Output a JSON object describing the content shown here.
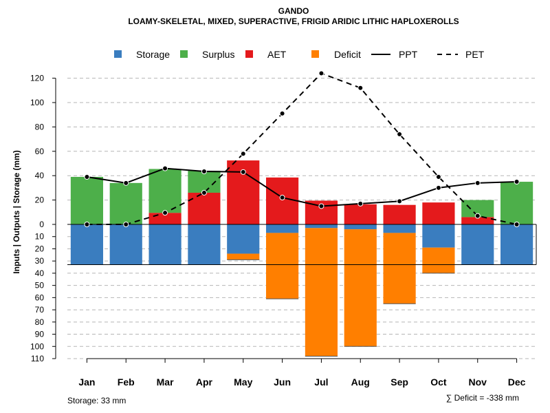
{
  "chart_data": {
    "type": "bar",
    "title": "GANDO",
    "subtitle": "LOAMY-SKELETAL, MIXED, SUPERACTIVE, FRIGID ARIDIC LITHIC HAPLOXEROLLS",
    "ylabel": "Inputs | Outputs | Storage    (mm)",
    "categories": [
      "Jan",
      "Feb",
      "Mar",
      "Apr",
      "May",
      "Jun",
      "Jul",
      "Aug",
      "Sep",
      "Oct",
      "Nov",
      "Dec"
    ],
    "upper_ticks": [
      "0",
      "20",
      "40",
      "60",
      "80",
      "100",
      "120"
    ],
    "lower_ticks": [
      "10",
      "20",
      "30",
      "40",
      "50",
      "60",
      "70",
      "80",
      "90",
      "100",
      "110"
    ],
    "upper_tick_values": [
      0,
      20,
      40,
      60,
      80,
      100,
      120
    ],
    "lower_tick_values": [
      10,
      20,
      30,
      40,
      50,
      60,
      70,
      80,
      90,
      100,
      110
    ],
    "ylim_upper": [
      0,
      120
    ],
    "ylim_lower": [
      0,
      110
    ],
    "legend": {
      "position": "top",
      "storage": "Storage",
      "surplus": "Surplus",
      "aet": "AET",
      "deficit": "Deficit",
      "ppt": "PPT",
      "pet": "PET"
    },
    "colors": {
      "storage": "#3a7dbf",
      "surplus": "#4daf4a",
      "aet": "#e41a1c",
      "deficit": "#ff7f00"
    },
    "series": [
      {
        "name": "Surplus",
        "values": [
          39,
          34,
          36,
          18,
          0,
          0,
          0,
          0,
          0,
          0,
          14,
          35
        ]
      },
      {
        "name": "AET",
        "values": [
          0,
          0,
          9.5,
          26,
          52.5,
          38.5,
          19.5,
          16.5,
          16,
          18,
          6,
          0
        ]
      },
      {
        "name": "Storage",
        "values": [
          33,
          33,
          33,
          33,
          24,
          7,
          3,
          4,
          7,
          19,
          33,
          33
        ]
      },
      {
        "name": "Deficit",
        "values": [
          0,
          0,
          0,
          0,
          5,
          54,
          105,
          96,
          58,
          21,
          0,
          0
        ]
      },
      {
        "name": "PPT",
        "values": [
          39,
          34,
          46,
          43.5,
          43,
          22,
          15,
          17,
          19,
          30,
          34,
          35
        ]
      },
      {
        "name": "PET",
        "values": [
          0,
          0,
          9.5,
          26,
          58,
          91,
          124,
          112,
          74,
          39,
          7,
          0
        ]
      }
    ],
    "storage_capacity": 33,
    "storage_note": "Storage: 33 mm",
    "deficit_note": "∑ Deficit = -338 mm"
  }
}
